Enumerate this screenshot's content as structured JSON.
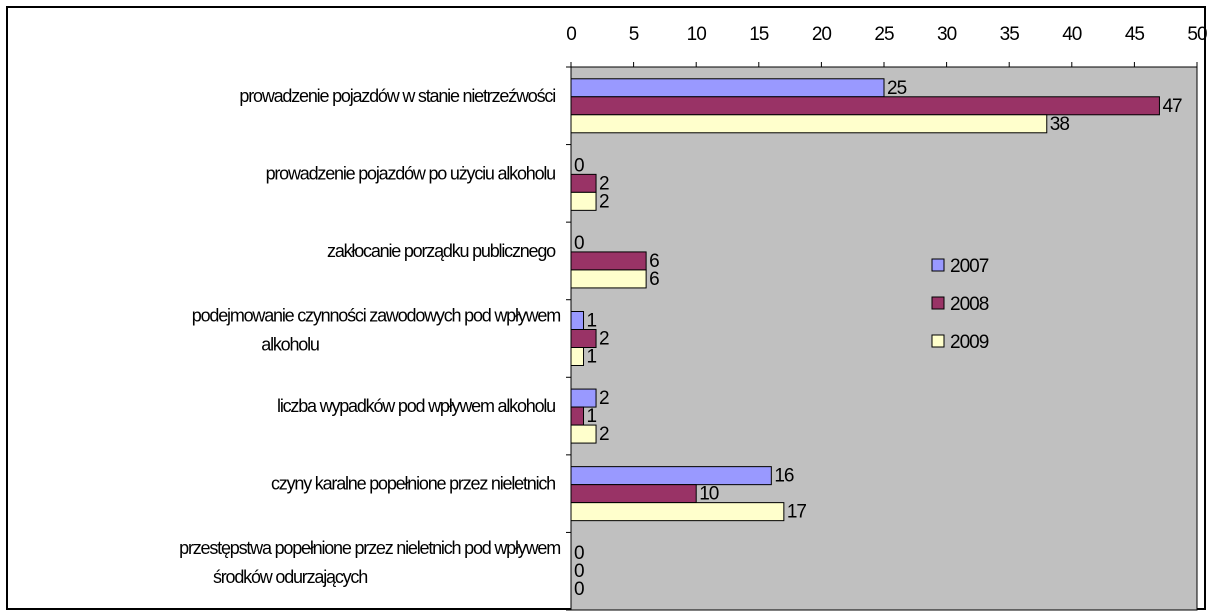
{
  "chart_data": {
    "type": "bar",
    "orientation": "horizontal",
    "x_axis_position": "top",
    "xlim": [
      0,
      50
    ],
    "x_ticks": [
      0,
      5,
      10,
      15,
      20,
      25,
      30,
      35,
      40,
      45,
      50
    ],
    "grid": false,
    "legend_position": "right",
    "plot_background": "#c0c0c0",
    "categories": [
      [
        "prowadzenie pojazdów  w stanie nietrzeźwości"
      ],
      [
        "prowadzenie pojazdów  po użyciu alkoholu"
      ],
      [
        "zakłocanie porządku publicznego"
      ],
      [
        "podejmowanie czynności zawodowych pod wpływem",
        "alkoholu"
      ],
      [
        "liczba wypadków pod wpływem alkoholu"
      ],
      [
        "czyny karalne popełnione przez nieletnich"
      ],
      [
        "przestępstwa popełnione przez nieletnich pod wpływem",
        "środków odurzających"
      ]
    ],
    "series": [
      {
        "name": "2007",
        "color": "#9999ff",
        "values": [
          25,
          0,
          0,
          1,
          2,
          16,
          0
        ]
      },
      {
        "name": "2008",
        "color": "#993366",
        "values": [
          47,
          2,
          6,
          2,
          1,
          10,
          0
        ]
      },
      {
        "name": "2009",
        "color": "#ffffcc",
        "values": [
          38,
          2,
          6,
          1,
          2,
          17,
          0
        ]
      }
    ]
  }
}
